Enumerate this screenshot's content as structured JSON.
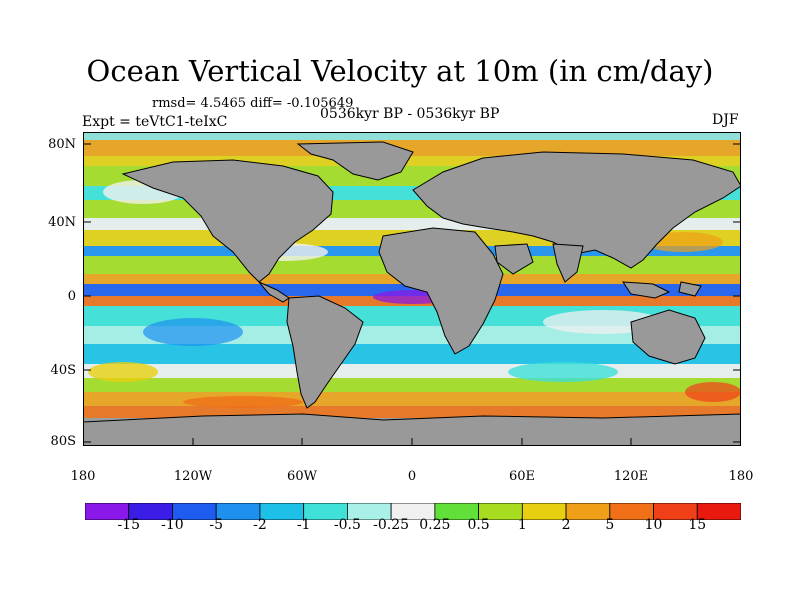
{
  "title": "Ocean Vertical Velocity at 10m (in cm/day)",
  "stats": "rmsd= 4.5465 diff= -0.105649",
  "period": "0536kyr BP - 0536kyr BP",
  "experiment": "Expt = teVtC1-teIxC",
  "season": "DJF",
  "lat_labels": [
    "80N",
    "40N",
    "0",
    "40S",
    "80S"
  ],
  "lon_labels": [
    "180",
    "120W",
    "60W",
    "0",
    "60E",
    "120E",
    "180"
  ],
  "colorbar": {
    "labels": [
      "-15",
      "-10",
      "-5",
      "-2",
      "-1",
      "-0.5",
      "-0.25",
      "0.25",
      "0.5",
      "1",
      "2",
      "5",
      "10",
      "15"
    ],
    "colors": [
      "#8a18e8",
      "#3a1ee6",
      "#1e5cf0",
      "#1e90f0",
      "#1ec0e8",
      "#3ee0d8",
      "#a8f0e8",
      "#f0f0f0",
      "#60e038",
      "#a8dc20",
      "#e8d010",
      "#f0a018",
      "#f07018",
      "#f04018",
      "#e81a10"
    ]
  },
  "colors": {
    "land": "#999999",
    "ocean_bg": "#8fe0d8",
    "coast": "#000000"
  }
}
